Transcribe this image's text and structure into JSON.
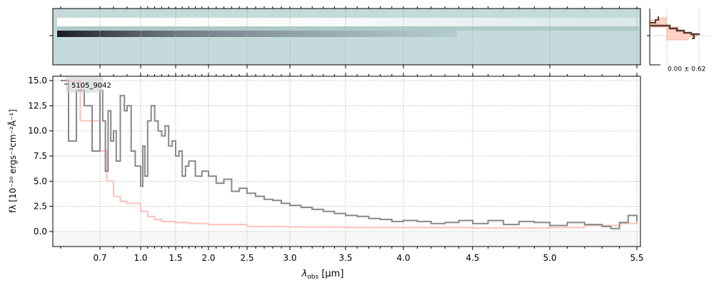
{
  "chart_data": {
    "type": "line",
    "xlabel": "λobs [μm]",
    "xlabel_main": "λ",
    "xlabel_sub": "obs",
    "xlabel_unit": " [μm]",
    "ylabel": "fλ [10⁻²⁰ ergs⁻¹cm⁻²Å⁻¹]",
    "xticks": [
      "0.7",
      "1.0",
      "1.5",
      "2.0",
      "2.5",
      "3.0",
      "3.5",
      "4.0",
      "4.5",
      "5.0",
      "5.5"
    ],
    "xtick_values": [
      0.7,
      1.0,
      1.5,
      2.0,
      2.5,
      3.0,
      3.5,
      4.0,
      4.5,
      5.0,
      5.5
    ],
    "yticks": [
      "0.0",
      "2.5",
      "5.0",
      "7.5",
      "10.0",
      "12.5",
      "15.0"
    ],
    "ytick_values": [
      0,
      2.5,
      5,
      7.5,
      10,
      12.5,
      15
    ],
    "ylim": [
      -1.5,
      15.3
    ],
    "xlim": [
      0.58,
      5.52
    ],
    "grid": true,
    "legend": {
      "label": "5105_9042",
      "placement": "top-left"
    },
    "inset_label": "0.00 ± 0.62",
    "colors": {
      "data": "#888888",
      "model": "#ffc4c0",
      "twod_bg": "#c5dbdb",
      "profile": "#5a3a30",
      "profile_fill": "#fcd2c4"
    },
    "series": [
      {
        "role": "observed spectrum",
        "x": [
          0.6,
          0.62,
          0.64,
          0.66,
          0.68,
          0.7,
          0.72,
          0.74,
          0.76,
          0.78,
          0.8,
          0.82,
          0.85,
          0.88,
          0.9,
          0.93,
          0.96,
          1.0,
          1.03,
          1.06,
          1.1,
          1.15,
          1.2,
          1.25,
          1.3,
          1.35,
          1.4,
          1.45,
          1.5,
          1.55,
          1.6,
          1.65,
          1.7,
          1.8,
          1.9,
          2.0,
          2.1,
          2.2,
          2.3,
          2.4,
          2.5,
          2.6,
          2.7,
          2.8,
          2.9,
          3.0,
          3.1,
          3.2,
          3.3,
          3.4,
          3.5,
          3.6,
          3.7,
          3.8,
          3.9,
          4.0,
          4.1,
          4.2,
          4.3,
          4.4,
          4.5,
          4.6,
          4.7,
          4.8,
          4.9,
          5.0,
          5.1,
          5.2,
          5.3,
          5.35,
          5.4,
          5.45,
          5.5
        ],
        "y": [
          15,
          9,
          14,
          12.5,
          8,
          14,
          11,
          6,
          12,
          9,
          10,
          7,
          13.5,
          12,
          12.5,
          8,
          6.5,
          4.5,
          8.5,
          5.5,
          11,
          12.5,
          11,
          10,
          9.5,
          10.5,
          8.5,
          9,
          7.5,
          8,
          5.5,
          6.5,
          7,
          5.5,
          6,
          5.5,
          4.8,
          5.2,
          4,
          4.3,
          3.8,
          3.5,
          3.2,
          3.1,
          2.8,
          2.6,
          2.4,
          2.2,
          2,
          1.8,
          1.6,
          1.5,
          1.3,
          1.2,
          1.0,
          1.1,
          1.0,
          0.8,
          0.9,
          1.1,
          0.8,
          1.1,
          0.7,
          1.0,
          0.9,
          0.6,
          0.9,
          0.7,
          0.5,
          0.3,
          0.9,
          1.6,
          1.0
        ]
      },
      {
        "role": "model / uncertainty",
        "x": [
          0.6,
          0.65,
          0.7,
          0.75,
          0.8,
          0.85,
          0.9,
          1.0,
          1.1,
          1.2,
          1.3,
          1.5,
          1.7,
          2.0,
          2.5,
          3.0,
          3.5,
          4.0,
          4.5,
          5.0,
          5.2,
          5.4,
          5.5
        ],
        "y": [
          15,
          11,
          8,
          5,
          3.5,
          3.0,
          2.8,
          2.0,
          1.5,
          1.2,
          1.0,
          0.9,
          0.8,
          0.7,
          0.5,
          0.45,
          0.4,
          0.4,
          0.35,
          0.4,
          0.6,
          0.8,
          1.3
        ]
      }
    ]
  }
}
